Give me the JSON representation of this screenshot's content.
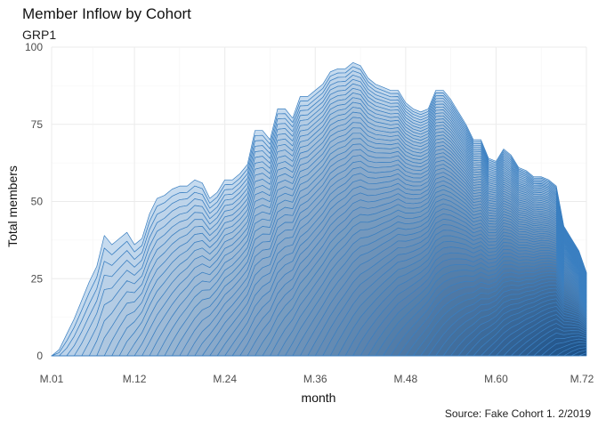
{
  "chart_data": {
    "type": "area",
    "stacked": true,
    "title": "Member Inflow by Cohort",
    "subtitle": "GRP1",
    "caption": "Source: Fake Cohort 1. 2/2019",
    "xlabel": "month",
    "ylabel": "Total members",
    "x_ticks": [
      "M.01",
      "M.12",
      "M.24",
      "M.36",
      "M.48",
      "M.60",
      "M.72"
    ],
    "y_ticks": [
      0,
      25,
      50,
      75,
      100
    ],
    "ylim": [
      0,
      100
    ],
    "xlim": [
      1,
      72
    ],
    "grid": true,
    "legend": "none",
    "cohorts": 72,
    "colors": {
      "light": "#c6dbef",
      "dark": "#08519c",
      "stroke": "#3a7fc1"
    },
    "total_by_month": {
      "x": [
        1,
        2,
        3,
        4,
        5,
        6,
        7,
        8,
        9,
        10,
        11,
        12,
        13,
        14,
        15,
        16,
        17,
        18,
        19,
        20,
        21,
        22,
        23,
        24,
        25,
        26,
        27,
        28,
        29,
        30,
        31,
        32,
        33,
        34,
        35,
        36,
        37,
        38,
        39,
        40,
        41,
        42,
        43,
        44,
        45,
        46,
        47,
        48,
        49,
        50,
        51,
        52,
        53,
        54,
        55,
        56,
        57,
        58,
        59,
        60,
        61,
        62,
        63,
        64,
        65,
        66,
        67,
        68,
        69,
        70,
        71,
        72
      ],
      "y": [
        0,
        2,
        7,
        12,
        18,
        24,
        29,
        39,
        36,
        38,
        40,
        36,
        38,
        46,
        51,
        52,
        54,
        55,
        55,
        57,
        56,
        51,
        53,
        57,
        57,
        59,
        62,
        73,
        73,
        70,
        80,
        80,
        77,
        84,
        84,
        86,
        88,
        92,
        93,
        93,
        95,
        94,
        90,
        88,
        87,
        86,
        86,
        82,
        80,
        79,
        80,
        86,
        86,
        83,
        79,
        75,
        70,
        70,
        64,
        63,
        67,
        65,
        61,
        60,
        58,
        58,
        57,
        55,
        42,
        38,
        34,
        27
      ]
    }
  }
}
